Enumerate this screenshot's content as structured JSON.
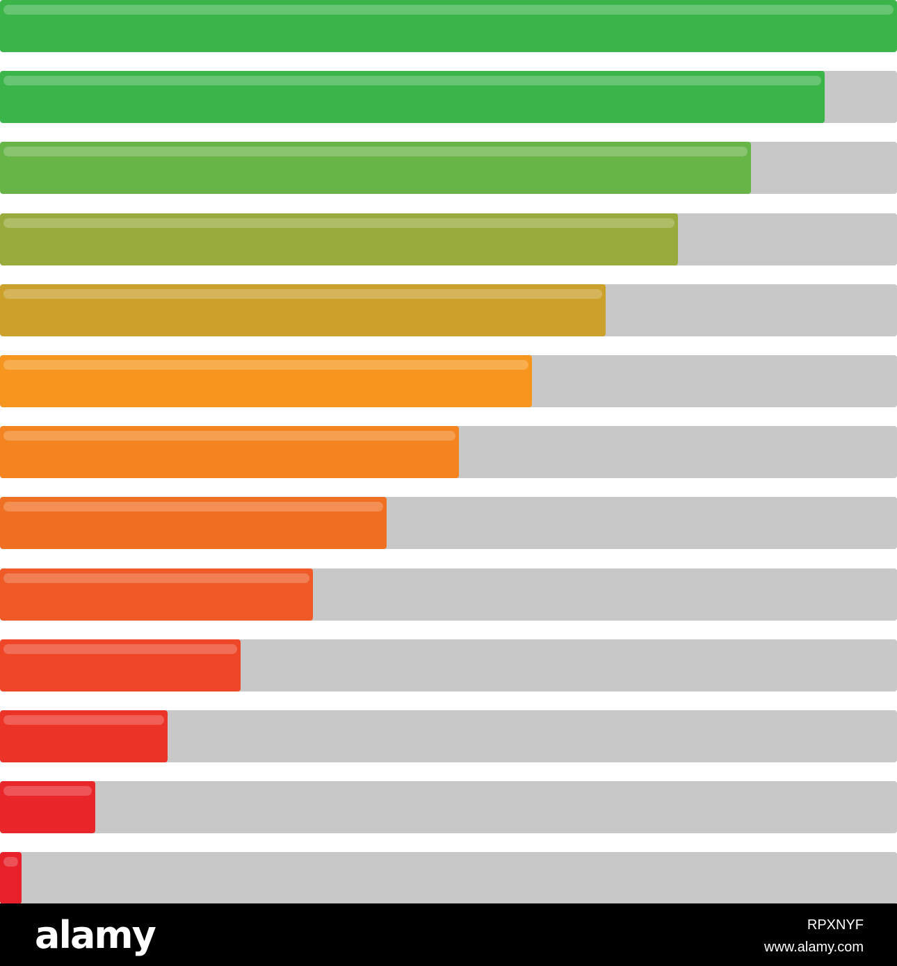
{
  "progress_bars": [
    {
      "level": 1.0,
      "color": "#3bb54a"
    },
    {
      "level": 0.919,
      "color": "#3bb54a"
    },
    {
      "level": 0.837,
      "color": "#67b546"
    },
    {
      "level": 0.756,
      "color": "#99ab3c"
    },
    {
      "level": 0.675,
      "color": "#cba12c"
    },
    {
      "level": 0.593,
      "color": "#f7961e"
    },
    {
      "level": 0.512,
      "color": "#f38420"
    },
    {
      "level": 0.431,
      "color": "#f07023"
    },
    {
      "level": 0.349,
      "color": "#ef5a27"
    },
    {
      "level": 0.268,
      "color": "#ee4627"
    },
    {
      "level": 0.187,
      "color": "#ec3327"
    },
    {
      "level": 0.106,
      "color": "#e92629"
    },
    {
      "level": 0.024,
      "color": "#e8202a"
    }
  ],
  "colors": {
    "track": "#c8c8c8",
    "background": "#ffffff",
    "footer": "#000000"
  },
  "footer": {
    "logo": "alamy",
    "image_id": "RPXNYF",
    "url": "www.alamy.com"
  }
}
